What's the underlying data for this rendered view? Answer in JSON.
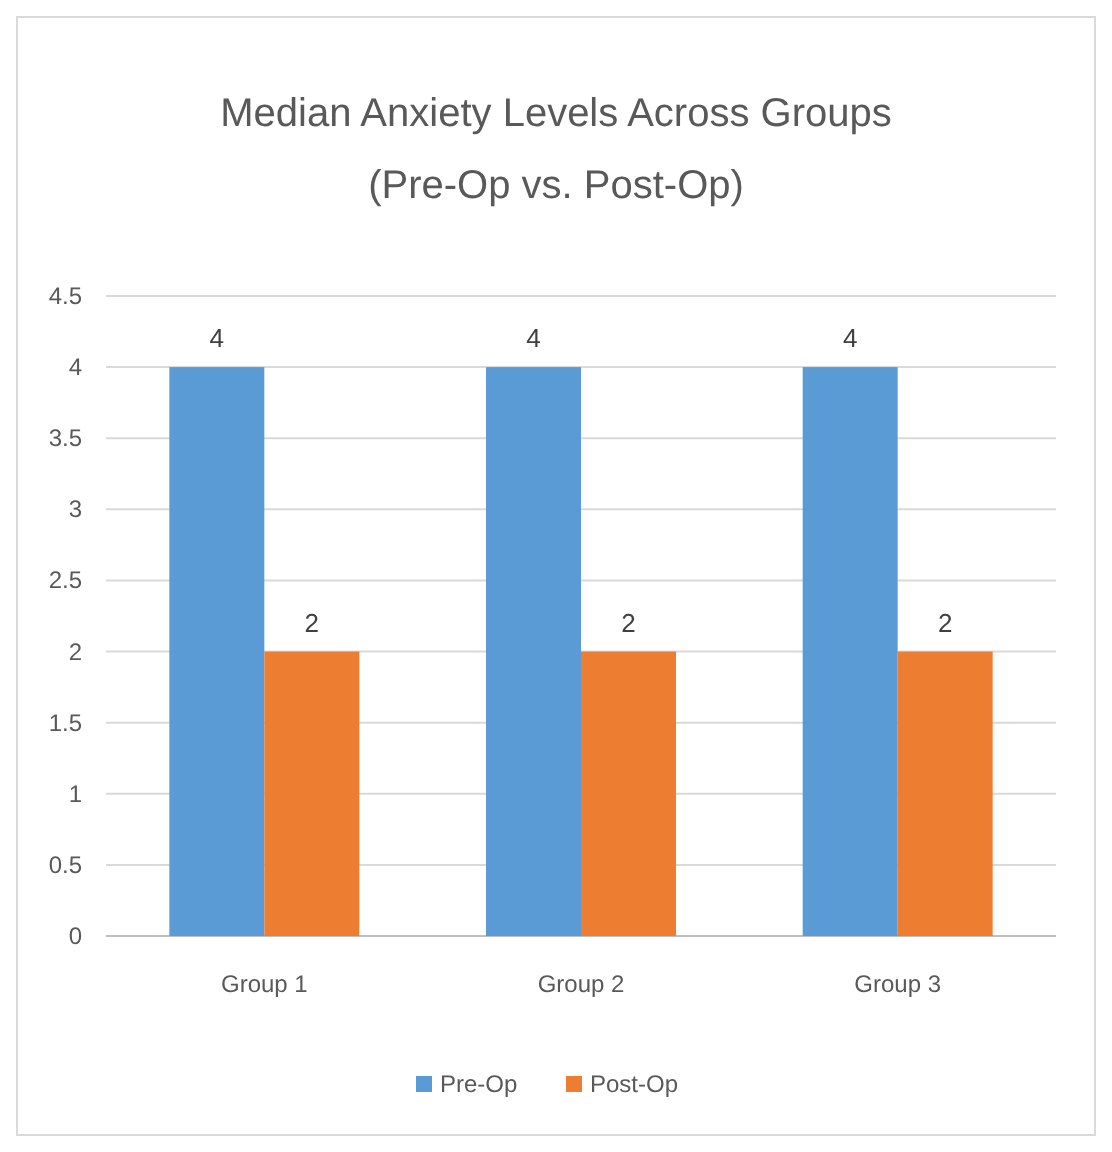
{
  "chart_data": {
    "type": "bar",
    "title": "Median Anxiety Levels Across Groups (Pre-Op vs. Post-Op)",
    "categories": [
      "Group 1",
      "Group 2",
      "Group 3"
    ],
    "series": [
      {
        "name": "Pre-Op",
        "color": "#5b9bd5",
        "values": [
          4,
          4,
          4
        ]
      },
      {
        "name": "Post-Op",
        "color": "#ed7d31",
        "values": [
          2,
          2,
          2
        ]
      }
    ],
    "ylim": [
      0,
      4.5
    ],
    "yticks": [
      0,
      0.5,
      1,
      1.5,
      2,
      2.5,
      3,
      3.5,
      4,
      4.5
    ],
    "grid": "y",
    "data_labels": true,
    "legend": "bottom"
  }
}
